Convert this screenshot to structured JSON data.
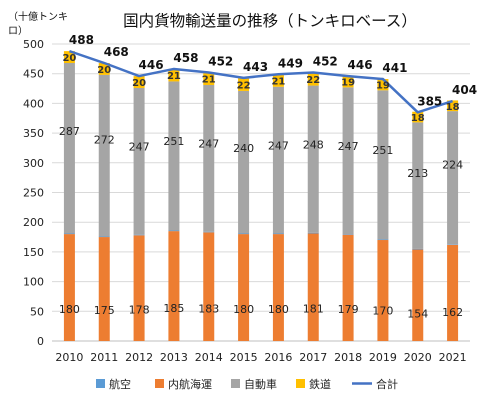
{
  "chart_data": {
    "type": "bar",
    "stacked": true,
    "title": "国内貨物輸送量の推移（トンキロベース）",
    "unit_label": [
      "（十億トンキ",
      "ロ）"
    ],
    "categories": [
      "2010",
      "2011",
      "2012",
      "2013",
      "2014",
      "2015",
      "2016",
      "2017",
      "2018",
      "2019",
      "2020",
      "2021"
    ],
    "ylim": [
      0,
      500
    ],
    "yticks": [
      0,
      50,
      100,
      150,
      200,
      250,
      300,
      350,
      400,
      450,
      500
    ],
    "grid": true,
    "legend_position": "bottom",
    "series": [
      {
        "name": "航空",
        "color": "#5b9bd5",
        "values": [
          1,
          1,
          1,
          1,
          1,
          1,
          1,
          1,
          1,
          1,
          1,
          1
        ]
      },
      {
        "name": "内航海運",
        "color": "#ed7d31",
        "values": [
          180,
          175,
          178,
          185,
          183,
          180,
          180,
          181,
          179,
          170,
          154,
          162
        ]
      },
      {
        "name": "自動車",
        "color": "#a5a5a5",
        "values": [
          287,
          272,
          247,
          251,
          247,
          240,
          247,
          248,
          247,
          251,
          213,
          224
        ]
      },
      {
        "name": "鉄道",
        "color": "#ffc000",
        "values": [
          20,
          20,
          20,
          21,
          21,
          22,
          21,
          22,
          19,
          19,
          18,
          18
        ]
      }
    ],
    "total": {
      "name": "合計",
      "color": "#4472c4",
      "values": [
        488,
        468,
        446,
        458,
        452,
        443,
        449,
        452,
        446,
        441,
        385,
        404
      ]
    }
  }
}
